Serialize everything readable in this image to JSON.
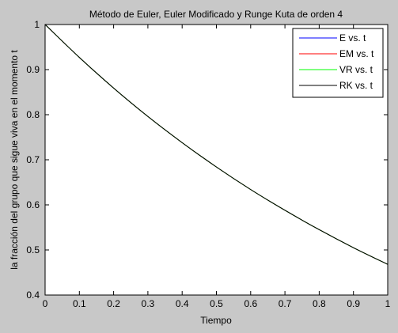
{
  "window": {
    "background": "#c8c8c8",
    "axes_background": "#ffffff"
  },
  "chart_data": {
    "type": "line",
    "title": "Método de Euler, Euler Modificado y Runge Kuta de orden 4",
    "xlabel": "Tiempo",
    "ylabel": "la fracción del grupo que sigue viva en el momento t",
    "xlim": [
      0,
      1
    ],
    "ylim": [
      0.4,
      1
    ],
    "grid": false,
    "legend_position": "top-right",
    "x_ticks": [
      "0",
      "0.1",
      "0.2",
      "0.3",
      "0.4",
      "0.5",
      "0.6",
      "0.7",
      "0.8",
      "0.9",
      "1"
    ],
    "y_ticks": [
      "0.4",
      "0.5",
      "0.6",
      "0.7",
      "0.8",
      "0.9",
      "1"
    ],
    "x": [
      0,
      0.1,
      0.2,
      0.3,
      0.4,
      0.5,
      0.6,
      0.7,
      0.8,
      0.9,
      1.0
    ],
    "series": [
      {
        "name": "E vs. t",
        "color": "#0000ff",
        "values": [
          1.0,
          0.927,
          0.859,
          0.796,
          0.738,
          0.684,
          0.634,
          0.588,
          0.545,
          0.505,
          0.468
        ]
      },
      {
        "name": "EM vs. t",
        "color": "#ff0000",
        "values": [
          1.0,
          0.927,
          0.859,
          0.796,
          0.738,
          0.684,
          0.634,
          0.588,
          0.545,
          0.505,
          0.468
        ]
      },
      {
        "name": "VR vs. t",
        "color": "#00ff00",
        "values": [
          1.0,
          0.927,
          0.859,
          0.796,
          0.738,
          0.684,
          0.634,
          0.588,
          0.545,
          0.505,
          0.468
        ]
      },
      {
        "name": "RK vs. t",
        "color": "#000000",
        "values": [
          1.0,
          0.927,
          0.859,
          0.796,
          0.738,
          0.684,
          0.634,
          0.588,
          0.545,
          0.505,
          0.468
        ]
      }
    ]
  }
}
